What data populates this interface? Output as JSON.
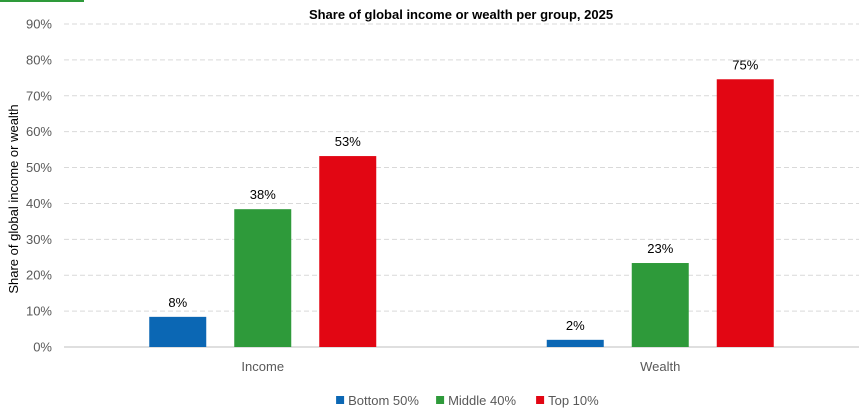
{
  "chart_data": {
    "type": "bar",
    "title": "Share of global income or wealth per group, 2025",
    "ylabel": "Share of global income or wealth",
    "xlabel": "",
    "categories": [
      "Income",
      "Wealth"
    ],
    "ylim": [
      0,
      90
    ],
    "yticks": [
      "0%",
      "10%",
      "20%",
      "30%",
      "40%",
      "50%",
      "60%",
      "70%",
      "80%",
      "90%"
    ],
    "grid": true,
    "legend_position": "bottom",
    "series": [
      {
        "name": "Bottom 50%",
        "color": "#0b67b4",
        "values": [
          8.4,
          2.0
        ],
        "labels": [
          "8%",
          "2%"
        ]
      },
      {
        "name": "Middle 40%",
        "color": "#2e9a3a",
        "values": [
          38.4,
          23.4
        ],
        "labels": [
          "38%",
          "23%"
        ]
      },
      {
        "name": "Top 10%",
        "color": "#e20613",
        "values": [
          53.2,
          74.6
        ],
        "labels": [
          "53%",
          "75%"
        ]
      }
    ]
  },
  "colors": {
    "accent": "#2e9a3a",
    "grid": "#d9d9d9",
    "axis": "#bfbfbf",
    "text": "#000000",
    "tick_text": "#595959"
  }
}
